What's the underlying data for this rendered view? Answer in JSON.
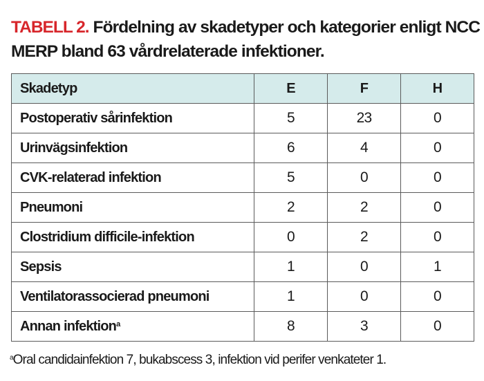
{
  "title": {
    "label": "TABELL 2.",
    "text": "Fördelning av skadetyper och kategorier enligt NCC MERP bland 63 vårdrelaterade infektioner."
  },
  "table": {
    "headers": [
      "Skadetyp",
      "E",
      "F",
      "H"
    ],
    "rows": [
      {
        "name": "Postoperativ sårinfektion",
        "sup": "",
        "E": "5",
        "F": "23",
        "H": "0"
      },
      {
        "name": "Urinvägsinfektion",
        "sup": "",
        "E": "6",
        "F": "4",
        "H": "0"
      },
      {
        "name": "CVK-relaterad infektion",
        "sup": "",
        "E": "5",
        "F": "0",
        "H": "0"
      },
      {
        "name": "Pneumoni",
        "sup": "",
        "E": "2",
        "F": "2",
        "H": "0"
      },
      {
        "name": "Clostridium difficile-infektion",
        "sup": "",
        "E": "0",
        "F": "2",
        "H": "0"
      },
      {
        "name": "Sepsis",
        "sup": "",
        "E": "1",
        "F": "0",
        "H": "1"
      },
      {
        "name": "Ventilatorassocierad pneumoni",
        "sup": "",
        "E": "1",
        "F": "0",
        "H": "0"
      },
      {
        "name": "Annan infektion",
        "sup": "a",
        "E": "8",
        "F": "3",
        "H": "0"
      }
    ],
    "header_bg": "#d5ebeb"
  },
  "footnote": {
    "mark": "a",
    "text": "Oral candidainfektion 7, bukabscess 3, infektion vid perifer venkateter 1."
  },
  "colors": {
    "label": "#d7262b"
  }
}
